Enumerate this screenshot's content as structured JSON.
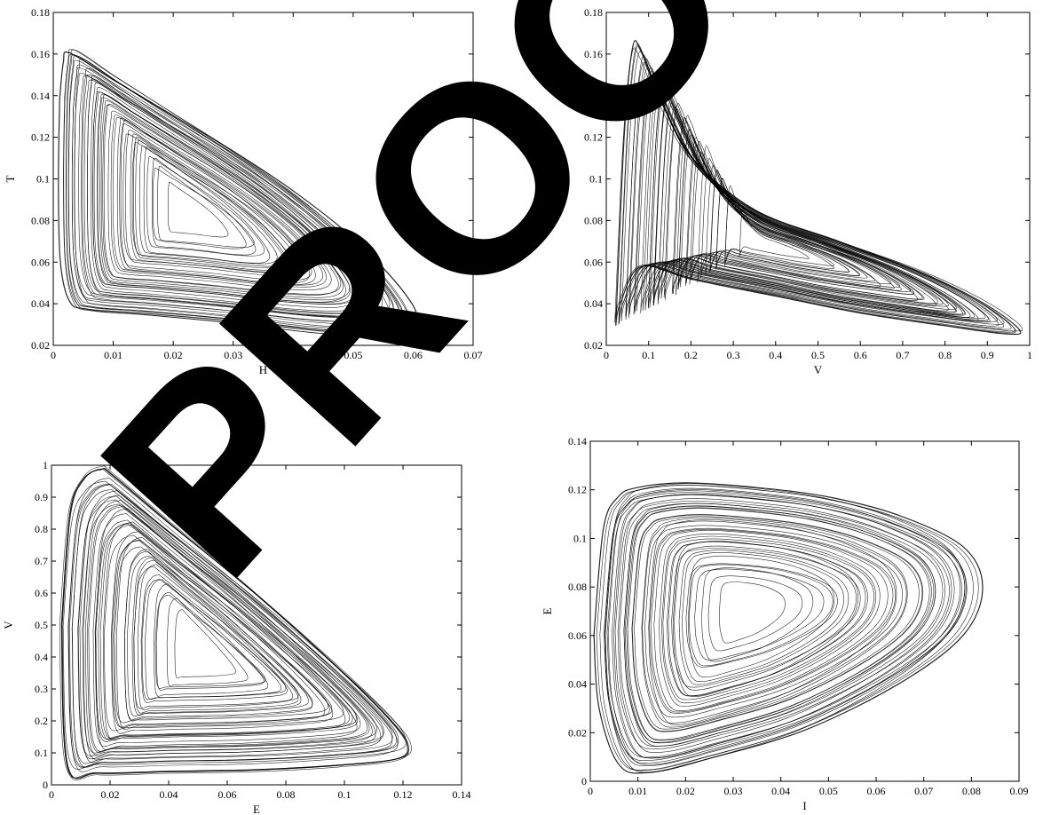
{
  "chart_data": [
    {
      "type": "line",
      "title": "",
      "xlabel": "H",
      "ylabel": "T",
      "xlim": [
        0,
        0.07
      ],
      "ylim": [
        0.02,
        0.18
      ],
      "xticks": [
        "0",
        "0.01",
        "0.02",
        "0.03",
        "0.04",
        "0.05",
        "0.06",
        "0.07"
      ],
      "yticks": [
        "0.02",
        "0.04",
        "0.06",
        "0.08",
        "0.1",
        "0.12",
        "0.14",
        "0.16",
        "0.18"
      ],
      "grid": false,
      "series": [
        {
          "x": [
            0.0014,
            0.002,
            0.003,
            0.01,
            0.02,
            0.03,
            0.04,
            0.05,
            0.058,
            0.06,
            0.056,
            0.045,
            0.03,
            0.015,
            0.006,
            0.003,
            0.0015,
            0.0012,
            0.0014
          ],
          "y": [
            0.14,
            0.158,
            0.163,
            0.15,
            0.132,
            0.114,
            0.094,
            0.07,
            0.044,
            0.03,
            0.024,
            0.025,
            0.03,
            0.034,
            0.036,
            0.04,
            0.06,
            0.1,
            0.14
          ]
        }
      ]
    },
    {
      "type": "line",
      "title": "",
      "xlabel": "V",
      "ylabel": "T",
      "xlim": [
        0,
        1
      ],
      "ylim": [
        0.02,
        0.18
      ],
      "xticks": [
        "0",
        "0.1",
        "0.2",
        "0.3",
        "0.4",
        "0.5",
        "0.6",
        "0.7",
        "0.8",
        "0.9",
        "1"
      ],
      "yticks": [
        "0.02",
        "0.04",
        "0.06",
        "0.08",
        "0.1",
        "0.12",
        "0.14",
        "0.16",
        "0.18"
      ],
      "grid": false,
      "series": [
        {
          "x": [
            0.02,
            0.04,
            0.06,
            0.08,
            0.12,
            0.2,
            0.35,
            0.55,
            0.75,
            0.9,
            0.98,
            0.95,
            0.8,
            0.6,
            0.4,
            0.2,
            0.08,
            0.03,
            0.02
          ],
          "y": [
            0.03,
            0.12,
            0.162,
            0.16,
            0.14,
            0.11,
            0.085,
            0.07,
            0.055,
            0.04,
            0.028,
            0.026,
            0.03,
            0.036,
            0.044,
            0.052,
            0.058,
            0.04,
            0.03
          ]
        }
      ]
    },
    {
      "type": "line",
      "title": "",
      "xlabel": "E",
      "ylabel": "V",
      "xlim": [
        0,
        0.14
      ],
      "ylim": [
        0,
        1
      ],
      "xticks": [
        "0",
        "0.02",
        "0.04",
        "0.06",
        "0.08",
        "0.1",
        "0.12",
        "0.14"
      ],
      "yticks": [
        "0",
        "0.1",
        "0.2",
        "0.3",
        "0.4",
        "0.5",
        "0.6",
        "0.7",
        "0.8",
        "0.9",
        "1"
      ],
      "grid": false,
      "series": [
        {
          "x": [
            0.002,
            0.005,
            0.01,
            0.016,
            0.02,
            0.04,
            0.07,
            0.1,
            0.118,
            0.124,
            0.12,
            0.1,
            0.07,
            0.04,
            0.015,
            0.004,
            0.002
          ],
          "y": [
            0.5,
            0.85,
            0.96,
            0.99,
            0.97,
            0.82,
            0.6,
            0.36,
            0.2,
            0.12,
            0.08,
            0.06,
            0.045,
            0.04,
            0.035,
            0.06,
            0.5
          ]
        }
      ]
    },
    {
      "type": "line",
      "title": "",
      "xlabel": "I",
      "ylabel": "E",
      "xlim": [
        0,
        0.09
      ],
      "ylim": [
        0,
        0.14
      ],
      "xticks": [
        "0",
        "0.01",
        "0.02",
        "0.03",
        "0.04",
        "0.05",
        "0.06",
        "0.07",
        "0.08",
        "0.09"
      ],
      "yticks": [
        "0",
        "0.02",
        "0.04",
        "0.06",
        "0.08",
        "0.1",
        "0.12",
        "0.14"
      ],
      "grid": false,
      "series": [
        {
          "x": [
            0.001,
            0.003,
            0.006,
            0.01,
            0.02,
            0.035,
            0.05,
            0.065,
            0.078,
            0.082,
            0.078,
            0.065,
            0.045,
            0.025,
            0.012,
            0.006,
            0.002,
            0.001
          ],
          "y": [
            0.06,
            0.105,
            0.118,
            0.122,
            0.124,
            0.122,
            0.118,
            0.11,
            0.097,
            0.08,
            0.06,
            0.04,
            0.02,
            0.008,
            0.002,
            0.006,
            0.03,
            0.06
          ]
        }
      ]
    }
  ],
  "watermark": {
    "text": "PROOF",
    "color": "#000000"
  },
  "colors": {
    "line": "#000000",
    "axes": "#000000",
    "background": "#ffffff"
  }
}
